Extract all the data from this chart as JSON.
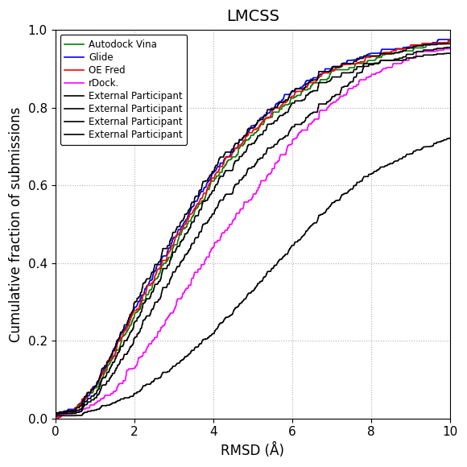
{
  "title": "LMCSS",
  "xlabel": "RMSD (Å)",
  "ylabel": "Cumulative fraction of submissions",
  "xlim": [
    0,
    10
  ],
  "ylim": [
    0,
    1.0
  ],
  "xticks": [
    0,
    2,
    4,
    6,
    8,
    10
  ],
  "yticks": [
    0.0,
    0.2,
    0.4,
    0.6,
    0.8,
    1.0
  ],
  "legend_entries": [
    {
      "label": "Autodock Vina",
      "color": "#008000"
    },
    {
      "label": "Glide",
      "color": "#0000ff"
    },
    {
      "label": "OE Fred",
      "color": "#ff0000"
    },
    {
      "label": "rDock.",
      "color": "#ff00ff"
    },
    {
      "label": "External Participant",
      "color": "#000000"
    },
    {
      "label": "External Participant",
      "color": "#000000"
    },
    {
      "label": "External Participant",
      "color": "#000000"
    },
    {
      "label": "External Participant",
      "color": "#000000"
    }
  ],
  "background_color": "#ffffff",
  "grid_color": "#b0b0b0",
  "title_fontsize": 14,
  "label_fontsize": 12,
  "tick_fontsize": 11,
  "linewidth": 1.2
}
